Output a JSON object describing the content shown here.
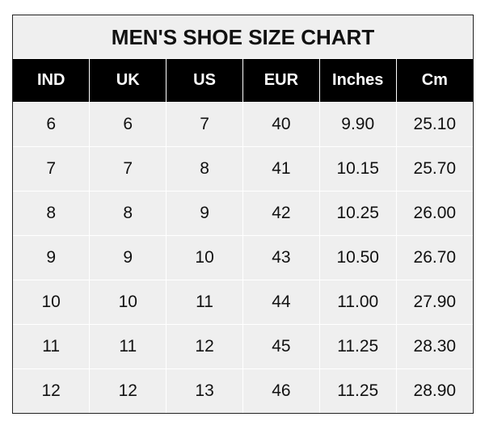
{
  "title": "MEN'S SHOE SIZE CHART",
  "headers": [
    "IND",
    "UK",
    "US",
    "EUR",
    "Inches",
    "Cm"
  ],
  "rows": [
    [
      "6",
      "6",
      "7",
      "40",
      "9.90",
      "25.10"
    ],
    [
      "7",
      "7",
      "8",
      "41",
      "10.15",
      "25.70"
    ],
    [
      "8",
      "8",
      "9",
      "42",
      "10.25",
      "26.00"
    ],
    [
      "9",
      "9",
      "10",
      "43",
      "10.50",
      "26.70"
    ],
    [
      "10",
      "10",
      "11",
      "44",
      "11.00",
      "27.90"
    ],
    [
      "11",
      "11",
      "12",
      "45",
      "11.25",
      "28.30"
    ],
    [
      "12",
      "12",
      "13",
      "46",
      "11.25",
      "28.90"
    ]
  ],
  "colors": {
    "header_bg": "#000000",
    "header_text": "#ffffff",
    "cell_bg": "#efefef"
  }
}
